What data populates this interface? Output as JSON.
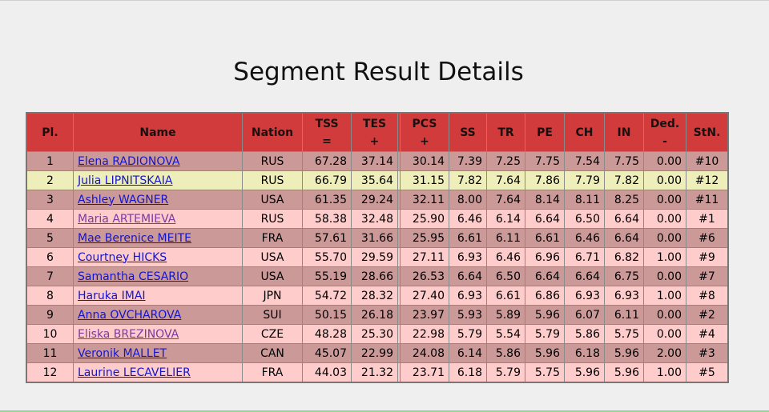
{
  "title": "Segment Result Details",
  "table": {
    "headers": {
      "pl": "Pl.",
      "name": "Name",
      "nation": "Nation",
      "tss": "TSS",
      "tss_sub": "=",
      "tes": "TES",
      "tes_sub": "+",
      "pcs": "PCS",
      "pcs_sub": "+",
      "ss": "SS",
      "tr": "TR",
      "pe": "PE",
      "ch": "CH",
      "in": "IN",
      "ded": "Ded.",
      "ded_sub": "-",
      "stn": "StN."
    },
    "rows": [
      {
        "pl": "1",
        "name": "Elena RADIONOVA",
        "nation": "RUS",
        "tss": "67.28",
        "tes": "37.14",
        "pcs": "30.14",
        "ss": "7.39",
        "tr": "7.25",
        "pe": "7.75",
        "ch": "7.54",
        "in": "7.75",
        "ded": "0.00",
        "stn": "#10"
      },
      {
        "pl": "2",
        "name": "Julia LIPNITSKAIA",
        "nation": "RUS",
        "tss": "66.79",
        "tes": "35.64",
        "pcs": "31.15",
        "ss": "7.82",
        "tr": "7.64",
        "pe": "7.86",
        "ch": "7.79",
        "in": "7.82",
        "ded": "0.00",
        "stn": "#12"
      },
      {
        "pl": "3",
        "name": "Ashley WAGNER",
        "nation": "USA",
        "tss": "61.35",
        "tes": "29.24",
        "pcs": "32.11",
        "ss": "8.00",
        "tr": "7.64",
        "pe": "8.14",
        "ch": "8.11",
        "in": "8.25",
        "ded": "0.00",
        "stn": "#11"
      },
      {
        "pl": "4",
        "name": "Maria ARTEMIEVA",
        "nation": "RUS",
        "tss": "58.38",
        "tes": "32.48",
        "pcs": "25.90",
        "ss": "6.46",
        "tr": "6.14",
        "pe": "6.64",
        "ch": "6.50",
        "in": "6.64",
        "ded": "0.00",
        "stn": "#1"
      },
      {
        "pl": "5",
        "name": "Mae Berenice MEITE",
        "nation": "FRA",
        "tss": "57.61",
        "tes": "31.66",
        "pcs": "25.95",
        "ss": "6.61",
        "tr": "6.11",
        "pe": "6.61",
        "ch": "6.46",
        "in": "6.64",
        "ded": "0.00",
        "stn": "#6"
      },
      {
        "pl": "6",
        "name": "Courtney HICKS",
        "nation": "USA",
        "tss": "55.70",
        "tes": "29.59",
        "pcs": "27.11",
        "ss": "6.93",
        "tr": "6.46",
        "pe": "6.96",
        "ch": "6.71",
        "in": "6.82",
        "ded": "1.00",
        "stn": "#9"
      },
      {
        "pl": "7",
        "name": "Samantha CESARIO",
        "nation": "USA",
        "tss": "55.19",
        "tes": "28.66",
        "pcs": "26.53",
        "ss": "6.64",
        "tr": "6.50",
        "pe": "6.64",
        "ch": "6.64",
        "in": "6.75",
        "ded": "0.00",
        "stn": "#7"
      },
      {
        "pl": "8",
        "name": "Haruka IMAI",
        "nation": "JPN",
        "tss": "54.72",
        "tes": "28.32",
        "pcs": "27.40",
        "ss": "6.93",
        "tr": "6.61",
        "pe": "6.86",
        "ch": "6.93",
        "in": "6.93",
        "ded": "1.00",
        "stn": "#8"
      },
      {
        "pl": "9",
        "name": "Anna OVCHAROVA",
        "nation": "SUI",
        "tss": "50.15",
        "tes": "26.18",
        "pcs": "23.97",
        "ss": "5.93",
        "tr": "5.89",
        "pe": "5.96",
        "ch": "6.07",
        "in": "6.11",
        "ded": "0.00",
        "stn": "#2"
      },
      {
        "pl": "10",
        "name": "Eliska BREZINOVA",
        "nation": "CZE",
        "tss": "48.28",
        "tes": "25.30",
        "pcs": "22.98",
        "ss": "5.79",
        "tr": "5.54",
        "pe": "5.79",
        "ch": "5.86",
        "in": "5.75",
        "ded": "0.00",
        "stn": "#4"
      },
      {
        "pl": "11",
        "name": "Veronik MALLET",
        "nation": "CAN",
        "tss": "45.07",
        "tes": "22.99",
        "pcs": "24.08",
        "ss": "6.14",
        "tr": "5.86",
        "pe": "5.96",
        "ch": "6.18",
        "in": "5.96",
        "ded": "2.00",
        "stn": "#3"
      },
      {
        "pl": "12",
        "name": "Laurine LECAVELIER",
        "nation": "FRA",
        "tss": "44.03",
        "tes": "21.32",
        "pcs": "23.71",
        "ss": "6.18",
        "tr": "5.79",
        "pe": "5.75",
        "ch": "5.96",
        "in": "5.96",
        "ded": "1.00",
        "stn": "#5"
      }
    ]
  }
}
